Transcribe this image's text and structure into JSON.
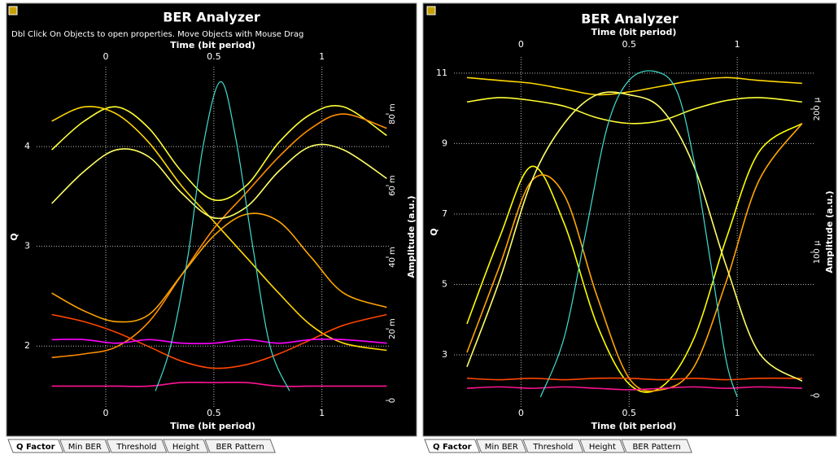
{
  "chart_data": [
    {
      "type": "eye",
      "title": "BER Analyzer",
      "subtitle": "Dbl Click On Objects to open properties.  Move Objects with Mouse Drag",
      "x_label": "Time (bit period)",
      "x2_label": "Time (bit period)",
      "y_label": "Q",
      "y2_label": "Amplitude (a.u.)",
      "xlim": [
        -0.32,
        1.31
      ],
      "xticks": [
        0,
        0.5,
        1
      ],
      "ylim": [
        1.39,
        4.8
      ],
      "yticks": [
        2,
        3,
        4
      ],
      "y2lim": [
        -0.0018,
        0.0932
      ],
      "y2ticks": [
        0,
        {
          "value": 0.02,
          "label": "20 m"
        },
        {
          "value": 0.04,
          "label": "40 m"
        },
        {
          "value": 0.06,
          "label": "60 m"
        },
        {
          "value": 0.08,
          "label": "80 m"
        }
      ],
      "grid": true,
      "tabs": [
        "Q Factor",
        "Min BER",
        "Threshold",
        "Height",
        "BER Pattern"
      ],
      "series": [
        {
          "color": "#40e0d0",
          "x": [
            0.23,
            0.3,
            0.38,
            0.45,
            0.53,
            0.6,
            0.68,
            0.76,
            0.85
          ],
          "values": [
            1.55,
            2.0,
            2.9,
            4.0,
            4.65,
            4.1,
            3.0,
            2.0,
            1.55
          ]
        },
        {
          "color": "#ffff33",
          "axis": "y2",
          "x": [
            -0.25,
            -0.1,
            0.05,
            0.2,
            0.35,
            0.5,
            0.65,
            0.8,
            0.95,
            1.1,
            1.3
          ],
          "values": [
            0.07,
            0.078,
            0.082,
            0.076,
            0.064,
            0.056,
            0.06,
            0.072,
            0.08,
            0.082,
            0.074
          ]
        },
        {
          "color": "#ffd700",
          "axis": "y2",
          "x": [
            -0.25,
            -0.1,
            0.05,
            0.2,
            0.35,
            0.5,
            0.65,
            0.8,
            0.95,
            1.1,
            1.3
          ],
          "values": [
            0.078,
            0.082,
            0.08,
            0.072,
            0.06,
            0.05,
            0.04,
            0.03,
            0.021,
            0.016,
            0.014
          ]
        },
        {
          "color": "#ff8c00",
          "axis": "y2",
          "x": [
            -0.25,
            -0.1,
            0.05,
            0.2,
            0.35,
            0.5,
            0.65,
            0.8,
            0.95,
            1.1,
            1.3
          ],
          "values": [
            0.012,
            0.013,
            0.015,
            0.022,
            0.035,
            0.048,
            0.058,
            0.068,
            0.076,
            0.08,
            0.076
          ]
        },
        {
          "color": "#ff4500",
          "axis": "y2",
          "x": [
            -0.25,
            -0.1,
            0.05,
            0.2,
            0.35,
            0.5,
            0.65,
            0.8,
            0.95,
            1.1,
            1.3
          ],
          "values": [
            0.024,
            0.022,
            0.019,
            0.015,
            0.011,
            0.009,
            0.01,
            0.013,
            0.017,
            0.021,
            0.024
          ]
        },
        {
          "color": "#ff1493",
          "axis": "y2",
          "x": [
            -0.25,
            -0.1,
            0.05,
            0.2,
            0.35,
            0.5,
            0.65,
            0.8,
            0.95,
            1.1,
            1.3
          ],
          "values": [
            0.004,
            0.004,
            0.004,
            0.004,
            0.005,
            0.005,
            0.005,
            0.004,
            0.004,
            0.004,
            0.004
          ]
        },
        {
          "color": "#ffff66",
          "axis": "y2",
          "x": [
            -0.25,
            -0.1,
            0.05,
            0.2,
            0.35,
            0.5,
            0.65,
            0.8,
            0.95,
            1.1,
            1.3
          ],
          "values": [
            0.055,
            0.064,
            0.07,
            0.068,
            0.058,
            0.051,
            0.054,
            0.064,
            0.071,
            0.07,
            0.062
          ]
        },
        {
          "color": "#ff00ff",
          "axis": "y2",
          "x": [
            -0.25,
            -0.1,
            0.05,
            0.2,
            0.35,
            0.5,
            0.65,
            0.8,
            0.95,
            1.1,
            1.3
          ],
          "values": [
            0.017,
            0.017,
            0.016,
            0.017,
            0.016,
            0.016,
            0.017,
            0.016,
            0.017,
            0.017,
            0.016
          ]
        },
        {
          "color": "#ffa500",
          "axis": "y2",
          "x": [
            -0.25,
            -0.1,
            0.05,
            0.2,
            0.35,
            0.5,
            0.65,
            0.8,
            0.95,
            1.1,
            1.3
          ],
          "values": [
            0.03,
            0.025,
            0.022,
            0.024,
            0.035,
            0.046,
            0.052,
            0.05,
            0.04,
            0.03,
            0.026
          ]
        }
      ]
    },
    {
      "type": "eye",
      "title": "BER Analyzer",
      "x_label": "Time (bit period)",
      "x2_label": "Time (bit period)",
      "y_label": "Q",
      "y2_label": "Amplitude (a.u.)",
      "xlim": [
        -0.31,
        1.353
      ],
      "xticks": [
        0,
        0.5,
        1
      ],
      "ylim": [
        1.52,
        11.46
      ],
      "yticks": [
        3,
        5,
        7,
        9,
        11
      ],
      "y2lim": [
        -8e-06,
        0.0002364
      ],
      "y2ticks": [
        0,
        {
          "value": 0.0001,
          "label": "100 µ"
        },
        {
          "value": 0.0002,
          "label": "200 µ"
        }
      ],
      "grid": true,
      "tabs": [
        "Q Factor",
        "Min BER",
        "Threshold",
        "Height",
        "BER Pattern"
      ],
      "series": [
        {
          "color": "#40e0d0",
          "x": [
            0.09,
            0.2,
            0.3,
            0.4,
            0.5,
            0.62,
            0.72,
            0.8,
            0.88,
            0.95,
            1.0
          ],
          "values": [
            1.8,
            3.5,
            6.5,
            9.5,
            10.8,
            11.05,
            10.5,
            8.5,
            5.5,
            2.8,
            1.8
          ]
        },
        {
          "color": "#ffff33",
          "axis": "y2",
          "x": [
            -0.25,
            -0.1,
            0.05,
            0.2,
            0.35,
            0.5,
            0.65,
            0.8,
            0.95,
            1.1,
            1.3
          ],
          "values": [
            0.000205,
            0.000208,
            0.000206,
            0.000202,
            0.000194,
            0.00019,
            0.000192,
            0.0002,
            0.000206,
            0.000208,
            0.000205
          ]
        },
        {
          "color": "#ffd700",
          "axis": "y2",
          "x": [
            -0.25,
            -0.1,
            0.05,
            0.2,
            0.35,
            0.5,
            0.65,
            0.8,
            0.95,
            1.1,
            1.3
          ],
          "values": [
            0.000222,
            0.00022,
            0.000218,
            0.000214,
            0.00021,
            0.000212,
            0.000216,
            0.00022,
            0.000222,
            0.00022,
            0.000218
          ]
        },
        {
          "color": "#ffff00",
          "axis": "y2",
          "x": [
            -0.25,
            -0.1,
            0.05,
            0.2,
            0.35,
            0.5,
            0.65,
            0.8,
            0.95,
            1.1,
            1.3
          ],
          "values": [
            5e-05,
            0.00011,
            0.00016,
            0.00012,
            5e-05,
            8e-06,
            6e-06,
            4e-05,
            0.00011,
            0.00017,
            0.00019
          ]
        },
        {
          "color": "#ffa500",
          "axis": "y2",
          "x": [
            -0.25,
            -0.1,
            0.05,
            0.2,
            0.35,
            0.5,
            0.65,
            0.8,
            0.95,
            1.1,
            1.3
          ],
          "values": [
            3e-05,
            9e-05,
            0.00015,
            0.00014,
            7e-05,
            1.2e-05,
            4e-06,
            2e-05,
            8e-05,
            0.00015,
            0.00019
          ]
        },
        {
          "color": "#ff1493",
          "axis": "y2",
          "x": [
            -0.25,
            -0.1,
            0.05,
            0.2,
            0.35,
            0.5,
            0.65,
            0.8,
            0.95,
            1.1,
            1.3
          ],
          "values": [
            5e-06,
            6e-06,
            5e-06,
            6e-06,
            5e-06,
            4e-06,
            5e-06,
            6e-06,
            5e-06,
            6e-06,
            5e-06
          ]
        },
        {
          "color": "#ff4500",
          "axis": "y2",
          "x": [
            -0.25,
            -0.1,
            0.05,
            0.2,
            0.35,
            0.5,
            0.65,
            0.8,
            0.95,
            1.1,
            1.3
          ],
          "values": [
            1.2e-05,
            1.1e-05,
            1.2e-05,
            1.1e-05,
            1.2e-05,
            1.2e-05,
            1.1e-05,
            1.2e-05,
            1.1e-05,
            1.2e-05,
            1.2e-05
          ]
        },
        {
          "color": "#ffff66",
          "axis": "y2",
          "x": [
            -0.25,
            -0.1,
            0.05,
            0.2,
            0.35,
            0.5,
            0.65,
            0.8,
            0.95,
            1.1,
            1.3
          ],
          "values": [
            2e-05,
            8e-05,
            0.00015,
            0.00019,
            0.00021,
            0.00021,
            0.0002,
            0.00016,
            9e-05,
            3e-05,
            1e-05
          ]
        }
      ]
    }
  ]
}
